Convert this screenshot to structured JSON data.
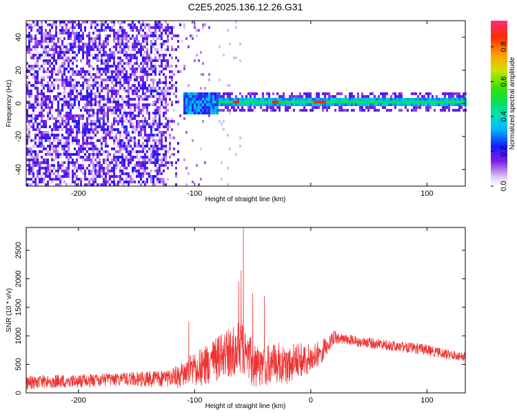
{
  "figure": {
    "title": "C2E5.2025.136.12.26.G31"
  },
  "chart_data": [
    {
      "type": "heatmap",
      "title": "C2E5.2025.136.12.26.G31",
      "xlabel": "Height of straight line (km)",
      "ylabel": "Frequency (Hz)",
      "xlim": [
        -245,
        133
      ],
      "ylim": [
        -50,
        50
      ],
      "x_ticks": [
        -200,
        -100,
        0,
        100
      ],
      "x_tick_labels": [
        "-200",
        "-100",
        "",
        "100"
      ],
      "y_ticks": [
        -40,
        -20,
        0,
        20,
        40
      ],
      "y_tick_labels": [
        "-40",
        "-20",
        "0",
        "20",
        "40"
      ],
      "colorbar": {
        "label": "Normalized spectral amplitude",
        "range": [
          0,
          0.95
        ],
        "ticks": [
          0.0,
          0.2,
          0.4,
          0.6,
          0.8
        ],
        "tick_labels": [
          "0.0",
          "0.2",
          "0.4",
          "0.6",
          "0.8"
        ]
      },
      "features": [
        {
          "label": "diffuse noise",
          "x_range": [
            -245,
            -110
          ],
          "freq_range": [
            -50,
            50
          ],
          "amplitude": 0.25
        },
        {
          "label": "onset band",
          "x_range": [
            -110,
            -80
          ],
          "freq_center": 0,
          "freq_halfwidth": 6,
          "amplitude": 0.35
        },
        {
          "label": "carrier line",
          "x_range": [
            -80,
            133
          ],
          "freq_center": 0.5,
          "freq_halfwidth": 3,
          "amplitude": 0.5
        },
        {
          "label": "peak spots",
          "x": [
            -65,
            -30,
            5,
            10
          ],
          "freq": [
            1,
            1,
            1,
            1
          ],
          "amplitude": 0.9
        }
      ]
    },
    {
      "type": "line",
      "title": "",
      "xlabel": "Height of straight line (km)",
      "ylabel": "SNR (10 * v/v)",
      "xlim": [
        -245,
        133
      ],
      "ylim": [
        0,
        2900
      ],
      "x_ticks": [
        -200,
        -100,
        0,
        100
      ],
      "x_tick_labels": [
        "-200",
        "-100",
        "0",
        "100"
      ],
      "y_ticks": [
        0,
        500,
        1000,
        1500,
        2000,
        2500
      ],
      "y_tick_labels": [
        "0",
        "500",
        "1000",
        "1500",
        "2000",
        "2500"
      ],
      "series": [
        {
          "color": "#ee3333",
          "x": [
            -245,
            -220,
            -200,
            -180,
            -160,
            -140,
            -120,
            -110,
            -100,
            -90,
            -80,
            -70,
            -60,
            -55,
            -50,
            -40,
            -30,
            -20,
            -10,
            0,
            10,
            20,
            25,
            40,
            60,
            80,
            100,
            120,
            133
          ],
          "envelope": [
            300,
            320,
            330,
            340,
            360,
            380,
            420,
            550,
            750,
            850,
            1000,
            1150,
            1300,
            1100,
            900,
            800,
            900,
            850,
            900,
            850,
            950,
            1100,
            1050,
            1000,
            950,
            900,
            850,
            750,
            720
          ],
          "noise": [
            150,
            150,
            150,
            150,
            150,
            180,
            200,
            300,
            400,
            450,
            500,
            550,
            600,
            550,
            500,
            450,
            450,
            450,
            400,
            350,
            250,
            150,
            120,
            120,
            120,
            120,
            120,
            110,
            100
          ],
          "spikes_x": [
            -58,
            -60,
            -62,
            -50,
            -40,
            -105
          ],
          "spikes_y": [
            2900,
            2150,
            1950,
            1750,
            1700,
            1250
          ]
        }
      ]
    }
  ]
}
